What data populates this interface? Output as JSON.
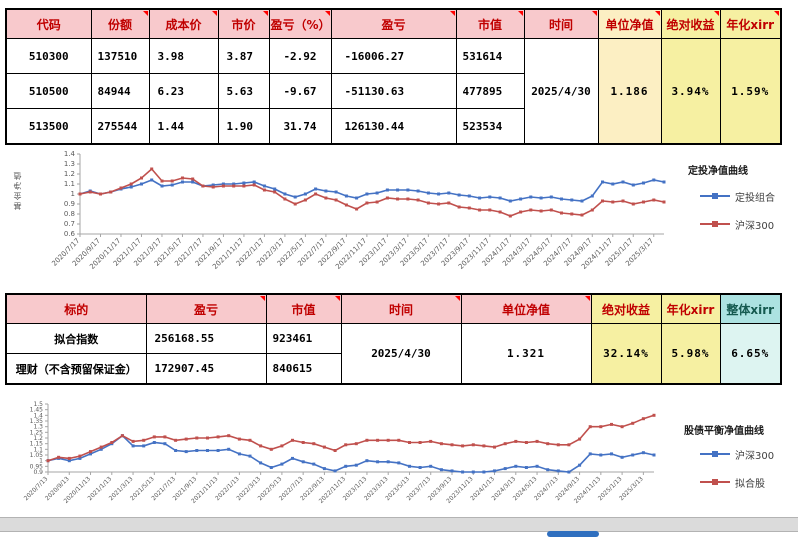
{
  "colors": {
    "header_pink": "#F8C9CC",
    "header_red_text": "#C00000",
    "unit_nav_yellow": "#FCEFC3",
    "return_yellow": "#F6F0A2",
    "overall_cyan": "#ACE2E1",
    "value_brown": "#BF8F00",
    "series_blue": "#4472C4",
    "series_red": "#C0504D"
  },
  "table1": {
    "headers": [
      "代码",
      "份额",
      "成本价",
      "市价",
      "盈亏（%）",
      "盈亏",
      "市值",
      "时间",
      "单位净值",
      "绝对收益",
      "年化xirr"
    ],
    "rows": [
      [
        "510300",
        "137510",
        "3.98",
        "3.87",
        "-2.92",
        "-16006.27",
        "531614"
      ],
      [
        "510500",
        "84944",
        "6.23",
        "5.63",
        "-9.67",
        "-51130.63",
        "477895"
      ],
      [
        "513500",
        "275544",
        "1.44",
        "1.90",
        "31.74",
        "126130.44",
        "523534"
      ]
    ],
    "time": "2025/4/30",
    "unit_nav": "1.186",
    "abs_return": "3.94%",
    "annual_xirr": "1.59%"
  },
  "table2": {
    "headers": [
      "标的",
      "盈亏",
      "市值",
      "时间",
      "单位净值",
      "绝对收益",
      "年化xirr",
      "整体xirr"
    ],
    "rows": [
      [
        "拟合指数",
        "256168.55",
        "923461"
      ],
      [
        "理财（不含预留保证金）",
        "172907.45",
        "840615"
      ]
    ],
    "time": "2025/4/30",
    "unit_nav": "1.321",
    "abs_return": "32.14%",
    "annual_xirr": "5.98%",
    "overall_xirr": "6.65%"
  },
  "chart_data": [
    {
      "type": "line",
      "title": "定投净值曲线",
      "ylabel": "基金净值",
      "ylim": [
        0.6,
        1.4
      ],
      "yticks": [
        "0.6",
        "0.7",
        "0.8",
        "0.9",
        "1",
        "1.1",
        "1.2",
        "1.3",
        "1.4"
      ],
      "grid": false,
      "legend_position": "right",
      "tick_step": 2,
      "x_tick_labels": [
        "2020/7/17",
        "2020/9/17",
        "2020/11/17",
        "2021/1/17",
        "2021/3/17",
        "2021/5/17",
        "2021/7/17",
        "2021/9/17",
        "2021/11/17",
        "2022/1/17",
        "2022/3/17",
        "2022/5/17",
        "2022/7/17",
        "2022/9/17",
        "2022/11/17",
        "2023/1/17",
        "2023/3/17",
        "2023/5/17",
        "2023/7/17",
        "2023/9/17",
        "2023/11/17",
        "2024/1/17",
        "2024/3/17",
        "2024/5/17",
        "2024/7/17",
        "2024/9/17",
        "2024/11/17",
        "2025/1/17",
        "2025/3/17"
      ],
      "series": [
        {
          "name": "定投组合",
          "color": "#4472C4",
          "values": [
            1.0,
            1.03,
            1.0,
            1.02,
            1.05,
            1.07,
            1.1,
            1.14,
            1.08,
            1.09,
            1.12,
            1.12,
            1.08,
            1.09,
            1.1,
            1.1,
            1.11,
            1.12,
            1.08,
            1.05,
            1.0,
            0.97,
            1.0,
            1.05,
            1.03,
            1.02,
            0.98,
            0.96,
            1.0,
            1.01,
            1.04,
            1.04,
            1.04,
            1.03,
            1.01,
            1.0,
            1.01,
            0.99,
            0.98,
            0.96,
            0.97,
            0.96,
            0.93,
            0.95,
            0.97,
            0.96,
            0.97,
            0.95,
            0.94,
            0.93,
            0.98,
            1.12,
            1.1,
            1.12,
            1.09,
            1.11,
            1.14,
            1.12
          ]
        },
        {
          "name": "沪深300",
          "color": "#C0504D",
          "values": [
            1.0,
            1.02,
            1.0,
            1.02,
            1.06,
            1.1,
            1.16,
            1.25,
            1.13,
            1.13,
            1.16,
            1.15,
            1.08,
            1.07,
            1.08,
            1.08,
            1.08,
            1.09,
            1.04,
            1.02,
            0.95,
            0.9,
            0.94,
            1.0,
            0.96,
            0.94,
            0.89,
            0.85,
            0.91,
            0.92,
            0.96,
            0.95,
            0.95,
            0.94,
            0.91,
            0.9,
            0.91,
            0.87,
            0.86,
            0.84,
            0.84,
            0.82,
            0.78,
            0.82,
            0.84,
            0.83,
            0.84,
            0.81,
            0.8,
            0.79,
            0.84,
            0.93,
            0.92,
            0.93,
            0.9,
            0.92,
            0.94,
            0.92
          ]
        }
      ]
    },
    {
      "type": "line",
      "title": "股债平衡净值曲线",
      "ylabel": "",
      "ylim": [
        0.9,
        1.5
      ],
      "yticks": [
        "0.9",
        "0.95",
        "1",
        "1.05",
        "1.1",
        "1.15",
        "1.2",
        "1.25",
        "1.3",
        "1.35",
        "1.4",
        "1.45",
        "1.5"
      ],
      "grid": false,
      "legend_position": "right",
      "tick_step": 2,
      "x_tick_labels": [
        "2020/7/13",
        "2020/9/13",
        "2020/11/13",
        "2021/1/13",
        "2021/3/13",
        "2021/5/13",
        "2021/7/13",
        "2021/9/13",
        "2021/11/13",
        "2022/1/13",
        "2022/3/13",
        "2022/5/13",
        "2022/7/13",
        "2022/9/13",
        "2022/11/13",
        "2023/1/13",
        "2023/3/13",
        "2023/5/13",
        "2023/7/13",
        "2023/9/13",
        "2023/11/13",
        "2024/1/13",
        "2024/3/13",
        "2024/5/13",
        "2024/7/13",
        "2024/9/13",
        "2024/11/13",
        "2025/1/13",
        "2025/3/13"
      ],
      "series": [
        {
          "name": "沪深300",
          "color": "#4472C4",
          "values": [
            1.0,
            1.02,
            1.0,
            1.02,
            1.06,
            1.1,
            1.15,
            1.22,
            1.13,
            1.13,
            1.16,
            1.15,
            1.09,
            1.08,
            1.09,
            1.09,
            1.09,
            1.1,
            1.06,
            1.04,
            0.98,
            0.94,
            0.97,
            1.02,
            0.99,
            0.97,
            0.93,
            0.91,
            0.95,
            0.96,
            1.0,
            0.99,
            0.99,
            0.98,
            0.95,
            0.94,
            0.95,
            0.92,
            0.91,
            0.9,
            0.9,
            0.9,
            0.91,
            0.93,
            0.95,
            0.94,
            0.95,
            0.92,
            0.91,
            0.9,
            0.96,
            1.06,
            1.05,
            1.06,
            1.03,
            1.05,
            1.07,
            1.05
          ]
        },
        {
          "name": "拟合股",
          "color": "#C0504D",
          "values": [
            1.0,
            1.03,
            1.02,
            1.04,
            1.08,
            1.12,
            1.16,
            1.22,
            1.17,
            1.18,
            1.21,
            1.21,
            1.18,
            1.19,
            1.2,
            1.2,
            1.21,
            1.22,
            1.19,
            1.18,
            1.13,
            1.1,
            1.13,
            1.18,
            1.16,
            1.15,
            1.12,
            1.09,
            1.14,
            1.15,
            1.18,
            1.18,
            1.18,
            1.18,
            1.16,
            1.16,
            1.17,
            1.15,
            1.14,
            1.13,
            1.14,
            1.13,
            1.12,
            1.15,
            1.17,
            1.16,
            1.17,
            1.15,
            1.14,
            1.14,
            1.19,
            1.3,
            1.3,
            1.32,
            1.3,
            1.33,
            1.37,
            1.4
          ]
        }
      ]
    }
  ]
}
